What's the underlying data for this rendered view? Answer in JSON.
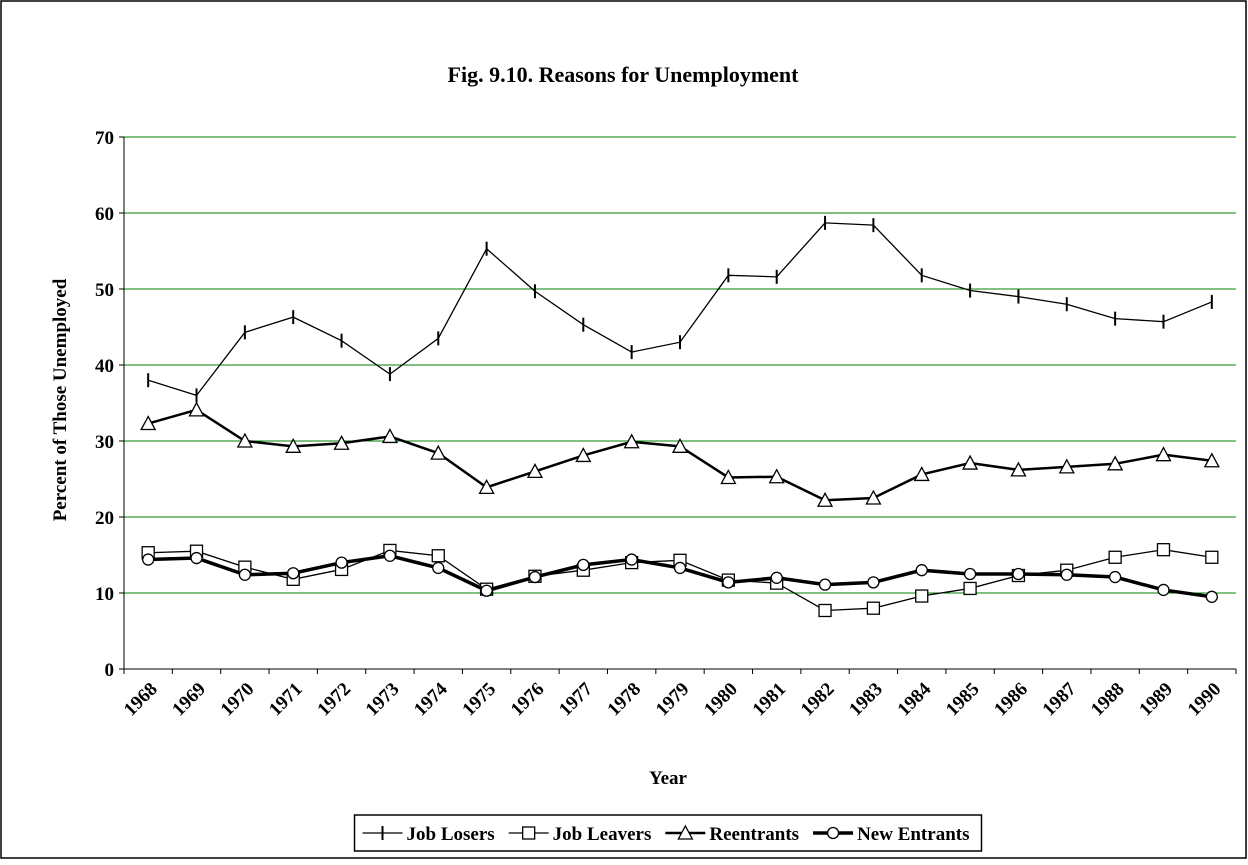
{
  "chart_data": {
    "type": "line",
    "title": "Fig. 9.10. Reasons for Unemployment",
    "x_label": "Year",
    "y_label": "Percent of Those Unemployed",
    "categories": [
      "1968",
      "1969",
      "1970",
      "1971",
      "1972",
      "1973",
      "1974",
      "1975",
      "1976",
      "1977",
      "1978",
      "1979",
      "1980",
      "1981",
      "1982",
      "1983",
      "1984",
      "1985",
      "1986",
      "1987",
      "1988",
      "1989",
      "1990"
    ],
    "series": [
      {
        "name": "Job Losers",
        "color": "#000000",
        "marker": "tick",
        "values": [
          38,
          36,
          44.3,
          46.3,
          43.2,
          38.8,
          43.5,
          55.3,
          49.7,
          45.3,
          41.7,
          43,
          51.8,
          51.6,
          58.7,
          58.4,
          51.8,
          49.8,
          49,
          48,
          46.1,
          45.7,
          48.3
        ]
      },
      {
        "name": "Job Leavers",
        "color": "#000000",
        "marker": "square",
        "values": [
          15.3,
          15.5,
          13.4,
          11.8,
          13.1,
          15.6,
          14.9,
          10.5,
          12.2,
          13,
          14,
          14.3,
          11.7,
          11.3,
          7.7,
          8,
          9.6,
          10.6,
          12.3,
          13,
          14.7,
          15.7,
          14.7
        ]
      },
      {
        "name": "Reentrants",
        "color": "#000000",
        "marker": "triangle",
        "values": [
          32.3,
          34.1,
          30,
          29.3,
          29.7,
          30.6,
          28.4,
          23.9,
          26,
          28.1,
          29.9,
          29.3,
          25.2,
          25.3,
          22.2,
          22.5,
          25.6,
          27.1,
          26.2,
          26.6,
          27,
          28.2,
          27.4
        ]
      },
      {
        "name": "New Entrants",
        "color": "#000000",
        "marker": "circle",
        "values": [
          14.4,
          14.6,
          12.4,
          12.6,
          14,
          14.9,
          13.3,
          10.3,
          12.1,
          13.7,
          14.4,
          13.3,
          11.4,
          12,
          11.1,
          11.4,
          13,
          12.5,
          12.5,
          12.4,
          12.1,
          10.4,
          9.5
        ]
      }
    ],
    "ylim": [
      0,
      70
    ],
    "yticks": [
      0,
      10,
      20,
      30,
      40,
      50,
      60,
      70
    ],
    "grid": true,
    "grid_color": "#008000",
    "legend": "bottom"
  }
}
